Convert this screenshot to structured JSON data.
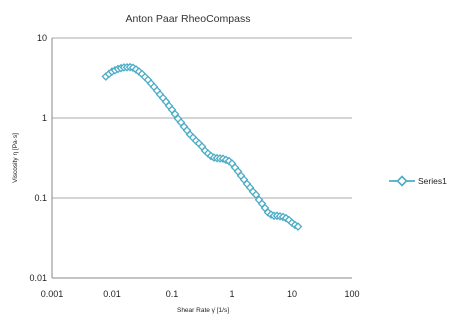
{
  "chart_data": {
    "type": "scatter",
    "title": "Anton Paar RheoCompass",
    "xlabel": "Shear Rate γ̇  [1/s]",
    "ylabel": "Viscosity  η  [Pa·s]",
    "xscale": "log",
    "yscale": "log",
    "xlim": [
      0.001,
      100
    ],
    "ylim": [
      0.01,
      10
    ],
    "x_ticks": [
      "0.001",
      "0.01",
      "0.1",
      "1",
      "10",
      "100"
    ],
    "y_ticks": [
      "0.01",
      "0.1",
      "1",
      "10"
    ],
    "grid": "horizontal",
    "legend": "right",
    "series": [
      {
        "name": "Series1",
        "color": "#4bacc6",
        "marker": "diamond",
        "x": [
          0.0079,
          0.0089,
          0.01,
          0.0112,
          0.0126,
          0.0141,
          0.0158,
          0.0178,
          0.02,
          0.0224,
          0.0251,
          0.0282,
          0.0316,
          0.0355,
          0.0398,
          0.0447,
          0.0501,
          0.0562,
          0.0631,
          0.0708,
          0.0794,
          0.0891,
          0.1,
          0.1122,
          0.1259,
          0.1413,
          0.1585,
          0.1778,
          0.1995,
          0.2239,
          0.2512,
          0.2818,
          0.3162,
          0.3548,
          0.3981,
          0.4467,
          0.5012,
          0.5623,
          0.631,
          0.7079,
          0.7943,
          0.8913,
          1.0,
          1.122,
          1.259,
          1.413,
          1.585,
          1.778,
          1.995,
          2.239,
          2.512,
          2.818,
          3.162,
          3.548,
          3.981,
          4.467,
          5.012,
          5.623,
          6.31,
          7.079,
          7.943,
          8.913,
          10.0,
          11.22,
          12.59
        ],
        "y": [
          3.3,
          3.55,
          3.8,
          3.95,
          4.1,
          4.2,
          4.28,
          4.3,
          4.32,
          4.25,
          4.05,
          3.8,
          3.55,
          3.25,
          3.0,
          2.7,
          2.45,
          2.2,
          1.97,
          1.78,
          1.6,
          1.42,
          1.27,
          1.12,
          0.98,
          0.88,
          0.78,
          0.7,
          0.62,
          0.57,
          0.52,
          0.48,
          0.44,
          0.39,
          0.36,
          0.335,
          0.32,
          0.315,
          0.312,
          0.31,
          0.3,
          0.29,
          0.27,
          0.24,
          0.215,
          0.19,
          0.17,
          0.15,
          0.135,
          0.12,
          0.11,
          0.095,
          0.085,
          0.075,
          0.066,
          0.062,
          0.06,
          0.06,
          0.059,
          0.058,
          0.056,
          0.053,
          0.049,
          0.046,
          0.044
        ]
      }
    ]
  }
}
